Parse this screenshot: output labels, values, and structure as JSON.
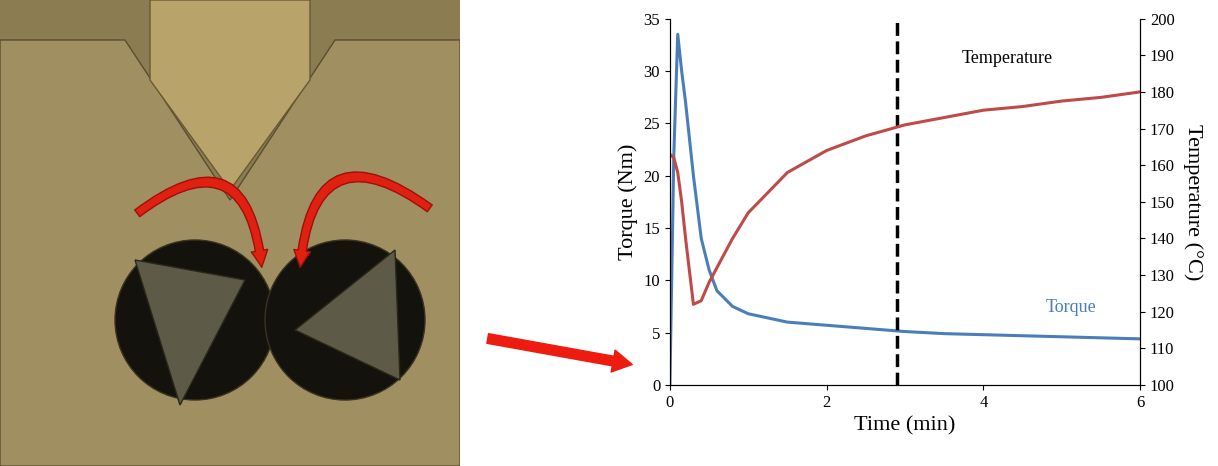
{
  "chart_data": {
    "type": "line",
    "x": [
      0,
      0.05,
      0.1,
      0.15,
      0.2,
      0.3,
      0.4,
      0.5,
      0.6,
      0.8,
      1,
      1.5,
      2,
      2.5,
      3,
      3.5,
      4,
      4.5,
      5,
      5.5,
      6
    ],
    "series": [
      {
        "name": "Torque",
        "color": "#4a7ebb",
        "axis": "y",
        "values": [
          0,
          22,
          33.5,
          30,
          27,
          20,
          14,
          11,
          9,
          7.5,
          6.8,
          6,
          5.7,
          5.4,
          5.1,
          4.9,
          4.8,
          4.7,
          4.6,
          4.5,
          4.4
        ]
      },
      {
        "name": "Temperature",
        "color": "#be4b48",
        "axis": "y2",
        "values": [
          163,
          162,
          158,
          150,
          140,
          122,
          123,
          128,
          132,
          140,
          147,
          158,
          164,
          168,
          171,
          173,
          175,
          176,
          177.5,
          178.5,
          180
        ]
      }
    ],
    "x_label": "Time (min)",
    "y_label": "Torque (Nm)",
    "y2_label": "Temperature (°C)",
    "xlim": [
      0,
      6
    ],
    "xticks": [
      0,
      2,
      4,
      6
    ],
    "ylim": [
      0,
      35
    ],
    "yticks": [
      0,
      5,
      10,
      15,
      20,
      25,
      30,
      35
    ],
    "y2lim": [
      100,
      200
    ],
    "y2ticks": [
      100,
      110,
      120,
      130,
      140,
      150,
      160,
      170,
      180,
      190,
      200
    ],
    "reference_line": {
      "x": 2.9,
      "color": "#000000",
      "line_style": "dashed"
    },
    "grid": false
  }
}
